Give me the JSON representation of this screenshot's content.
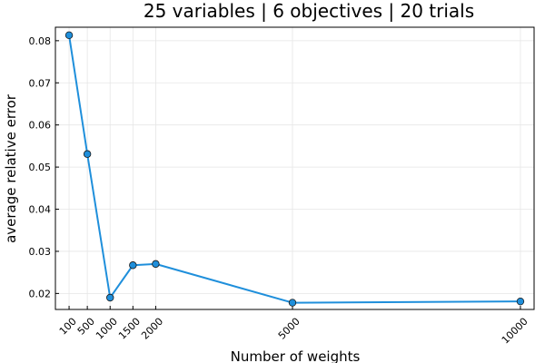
{
  "chart_data": {
    "type": "line",
    "title": "25 variables | 6 objectives | 20 trials",
    "xlabel": "Number of weights",
    "ylabel": "average relative error",
    "x": [
      100,
      500,
      1000,
      1500,
      2000,
      5000,
      10000
    ],
    "series": [
      {
        "values": [
          0.0813,
          0.0531,
          0.019,
          0.0267,
          0.027,
          0.0178,
          0.0181
        ]
      }
    ],
    "xticks": [
      100,
      500,
      1000,
      1500,
      2000,
      5000,
      10000
    ],
    "xtick_labels": [
      "100",
      "500",
      "1000",
      "1500",
      "2000",
      "5000",
      "10000"
    ],
    "yticks": [
      0.02,
      0.03,
      0.04,
      0.05,
      0.06,
      0.07,
      0.08
    ],
    "ytick_labels": [
      "0.02",
      "0.03",
      "0.04",
      "0.05",
      "0.06",
      "0.07",
      "0.08"
    ],
    "xlim": [
      -200,
      10300
    ],
    "ylim": [
      0.0162,
      0.0832
    ],
    "grid": true,
    "legend": "none",
    "colors": {
      "line": "#1f8fdb",
      "marker_fill": "#1f8fdb",
      "marker_edge": "#1a1a1a"
    }
  }
}
